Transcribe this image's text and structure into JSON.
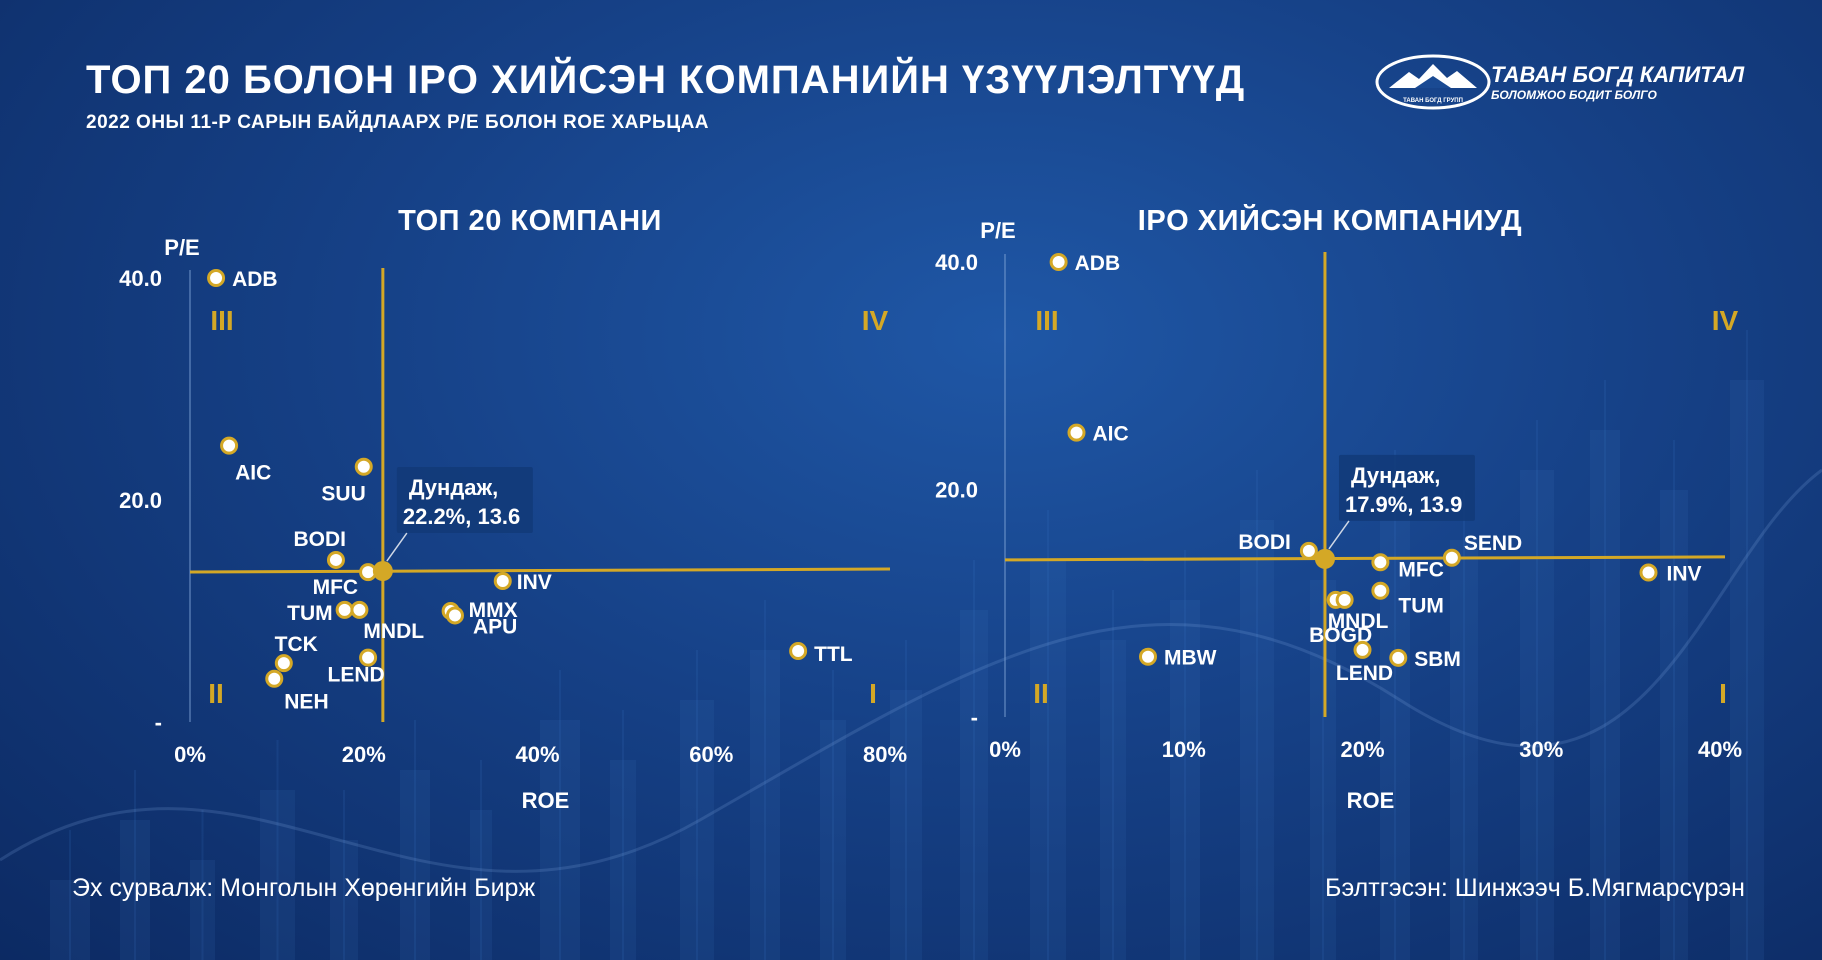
{
  "header": {
    "title": "ТОП 20 БОЛОН IPO ХИЙСЭН КОМПАНИЙН ҮЗҮҮЛЭЛТҮҮД",
    "subtitle": "2022 ОНЫ 11-Р САРЫН БАЙДЛААРХ P/E БОЛОН ROE ХАРЬЦАА"
  },
  "logo": {
    "name": "ТАВАН БОГД КАПИТАЛ",
    "tagline": "БОЛОМЖОО БОДИТ БОЛГО",
    "sub": "ТАВАН БОГД ГРУПП"
  },
  "footer": {
    "source": "Эх сурвалж: Монголын Хөрөнгийн Бирж",
    "author": "Бэлтгэсэн: Шинжээч Б.Мягмарсүрэн"
  },
  "colors": {
    "accent": "#d4a826",
    "background": "#164187",
    "text": "#ffffff"
  },
  "chart_data": [
    {
      "type": "scatter",
      "title": "ТОП 20 КОМПАНИ",
      "xlabel": "ROE",
      "ylabel": "P/E",
      "xlim": [
        0,
        0.8
      ],
      "ylim": [
        0,
        40
      ],
      "xticks": [
        {
          "v": 0,
          "label": "0%"
        },
        {
          "v": 0.2,
          "label": "20%"
        },
        {
          "v": 0.4,
          "label": "40%"
        },
        {
          "v": 0.6,
          "label": "60%"
        },
        {
          "v": 0.8,
          "label": "80%"
        }
      ],
      "yticks": [
        {
          "v": 0,
          "label": "-"
        },
        {
          "v": 20,
          "label": "20.0"
        },
        {
          "v": 40,
          "label": "40.0"
        }
      ],
      "grid": false,
      "quadrants": {
        "top_left": "III",
        "top_right": "IV",
        "bottom_left": "II",
        "bottom_right": "I"
      },
      "average": {
        "x": 0.222,
        "y": 13.6,
        "label_line1": "Дундаж,",
        "label_line2": "22.2%, 13.6"
      },
      "points": [
        {
          "name": "ADB",
          "x": 0.03,
          "y": 40.0
        },
        {
          "name": "AIC",
          "x": 0.045,
          "y": 24.9
        },
        {
          "name": "SUU",
          "x": 0.2,
          "y": 23.0
        },
        {
          "name": "BODI",
          "x": 0.168,
          "y": 14.6
        },
        {
          "name": "MFC",
          "x": 0.205,
          "y": 13.5
        },
        {
          "name": "TUM",
          "x": 0.178,
          "y": 10.1
        },
        {
          "name": "MNDL",
          "x": 0.195,
          "y": 10.1
        },
        {
          "name": "INV",
          "x": 0.36,
          "y": 12.7
        },
        {
          "name": "MMX",
          "x": 0.3,
          "y": 10.0
        },
        {
          "name": "APU",
          "x": 0.305,
          "y": 9.6
        },
        {
          "name": "TCK",
          "x": 0.108,
          "y": 5.3
        },
        {
          "name": "NEH",
          "x": 0.097,
          "y": 3.9
        },
        {
          "name": "LEND",
          "x": 0.205,
          "y": 5.8
        },
        {
          "name": "TTL",
          "x": 0.7,
          "y": 6.4
        }
      ]
    },
    {
      "type": "scatter",
      "title": "IPO ХИЙСЭН КОМПАНИУД",
      "xlabel": "ROE",
      "ylabel": "P/E",
      "xlim": [
        0,
        0.4
      ],
      "ylim": [
        0,
        40
      ],
      "xticks": [
        {
          "v": 0,
          "label": "0%"
        },
        {
          "v": 0.1,
          "label": "10%"
        },
        {
          "v": 0.2,
          "label": "20%"
        },
        {
          "v": 0.3,
          "label": "30%"
        },
        {
          "v": 0.4,
          "label": "40%"
        }
      ],
      "yticks": [
        {
          "v": 0,
          "label": "-"
        },
        {
          "v": 20,
          "label": "20.0"
        },
        {
          "v": 40,
          "label": "40.0"
        }
      ],
      "grid": false,
      "quadrants": {
        "top_left": "III",
        "top_right": "IV",
        "bottom_left": "II",
        "bottom_right": "I"
      },
      "average": {
        "x": 0.179,
        "y": 13.9,
        "label_line1": "Дундаж,",
        "label_line2": "17.9%,  13.9"
      },
      "points": [
        {
          "name": "ADB",
          "x": 0.03,
          "y": 40.0
        },
        {
          "name": "AIC",
          "x": 0.04,
          "y": 25.0
        },
        {
          "name": "BODI",
          "x": 0.17,
          "y": 14.6
        },
        {
          "name": "SEND",
          "x": 0.25,
          "y": 14.0
        },
        {
          "name": "MFC",
          "x": 0.21,
          "y": 13.6
        },
        {
          "name": "INV",
          "x": 0.36,
          "y": 12.7
        },
        {
          "name": "MNDL",
          "x": 0.185,
          "y": 10.3
        },
        {
          "name": "TUM",
          "x": 0.21,
          "y": 11.1
        },
        {
          "name": "BOGD",
          "x": 0.19,
          "y": 10.3
        },
        {
          "name": "MBW",
          "x": 0.08,
          "y": 5.3
        },
        {
          "name": "LEND",
          "x": 0.2,
          "y": 5.9
        },
        {
          "name": "SBM",
          "x": 0.22,
          "y": 5.2
        }
      ]
    }
  ]
}
